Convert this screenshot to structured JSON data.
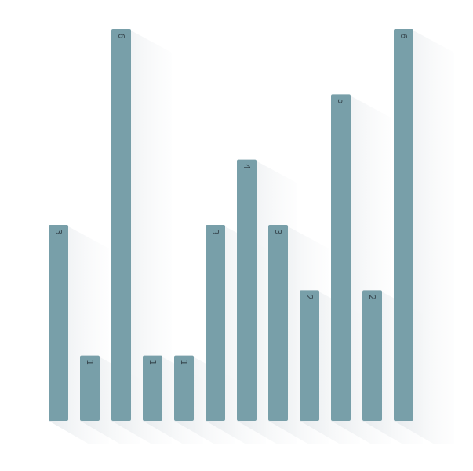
{
  "chart_data": {
    "type": "bar",
    "categories": [
      "",
      "",
      "",
      "",
      "",
      "",
      "",
      "",
      "",
      "",
      "",
      ""
    ],
    "values": [
      3,
      1,
      6,
      1,
      1,
      3,
      4,
      3,
      2,
      5,
      2,
      6
    ],
    "data_labels": [
      "3",
      "1",
      "6",
      "1",
      "1",
      "3",
      "4",
      "3",
      "2",
      "5",
      "2",
      "6"
    ],
    "ylim": [
      0,
      6
    ],
    "grid": false,
    "legend": "none",
    "colors": {
      "bar": "#789fa9",
      "label": "#37474f",
      "shadow": "#e9edf0"
    }
  }
}
